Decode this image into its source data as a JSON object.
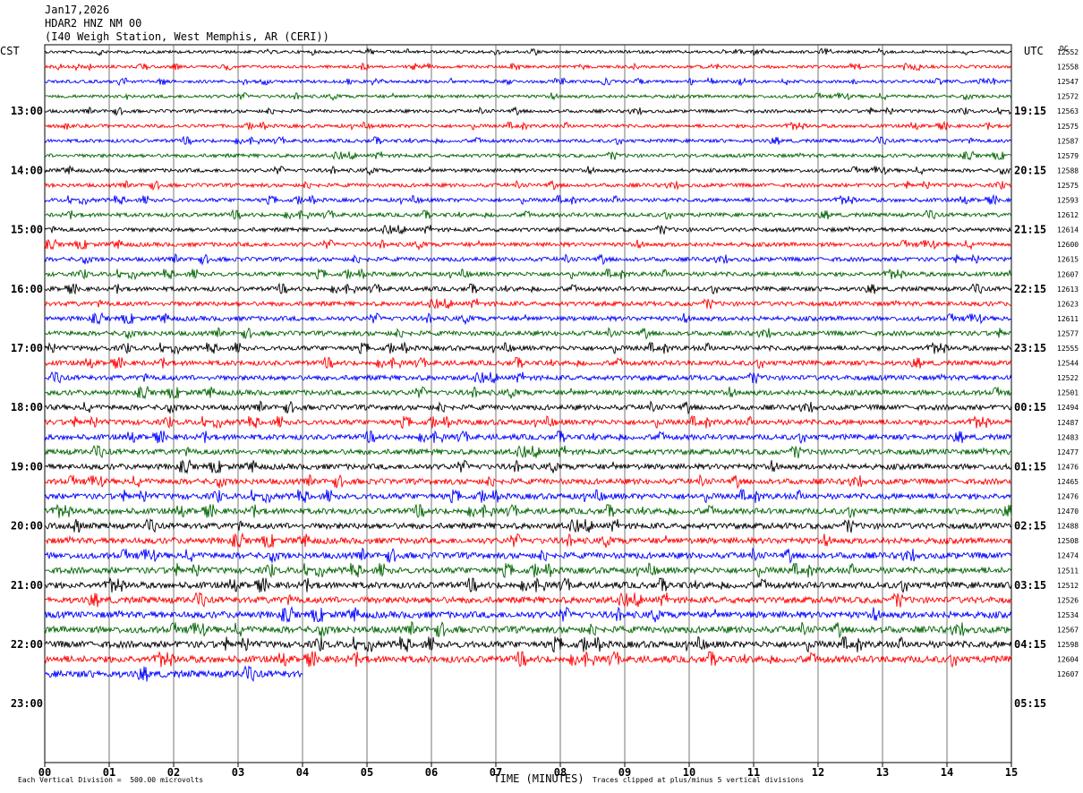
{
  "header": {
    "date": "Jan17,2026",
    "station": "HDAR2 HNZ NM 00",
    "location": "(I40 Weigh Station, West Memphis, AR (CERI))"
  },
  "chart_data": {
    "type": "line",
    "title": "",
    "left_axis_label": "CST",
    "right_axis_label": "UTC",
    "dc_label": "DC",
    "xlabel": "TIME (MINUTES)",
    "xlim": [
      0,
      15
    ],
    "x_ticks": [
      "00",
      "01",
      "02",
      "03",
      "04",
      "05",
      "06",
      "07",
      "08",
      "09",
      "10",
      "11",
      "12",
      "13",
      "14",
      "15"
    ],
    "left_time_labels": [
      "13:00",
      "14:00",
      "15:00",
      "16:00",
      "17:00",
      "18:00",
      "19:00",
      "20:00",
      "21:00",
      "22:00",
      "23:00"
    ],
    "right_time_labels": [
      "19:15",
      "20:15",
      "21:15",
      "22:15",
      "23:15",
      "00:15",
      "01:15",
      "02:15",
      "03:15",
      "04:15",
      "05:15"
    ],
    "first_labeled_hour_row": 4,
    "rows_per_hour": 4,
    "total_rows": 44,
    "grid": true,
    "trace_colors": [
      "#000000",
      "#ff0000",
      "#0000ff",
      "#006400"
    ],
    "dc_offsets": [
      12552,
      12558,
      12547,
      12572,
      12563,
      12575,
      12587,
      12579,
      12588,
      12575,
      12593,
      12612,
      12614,
      12600,
      12615,
      12607,
      12613,
      12623,
      12611,
      12577,
      12555,
      12544,
      12522,
      12501,
      12494,
      12487,
      12483,
      12477,
      12476,
      12465,
      12476,
      12470,
      12488,
      12508,
      12474,
      12511,
      12512,
      12526,
      12534,
      12567,
      12598,
      12604,
      12607
    ],
    "last_trace_minutes": 4.0,
    "footer_left": "Each Vertical Division =  500.00 microvolts",
    "footer_right": "Traces clipped at plus/minus 5 vertical divisions"
  }
}
